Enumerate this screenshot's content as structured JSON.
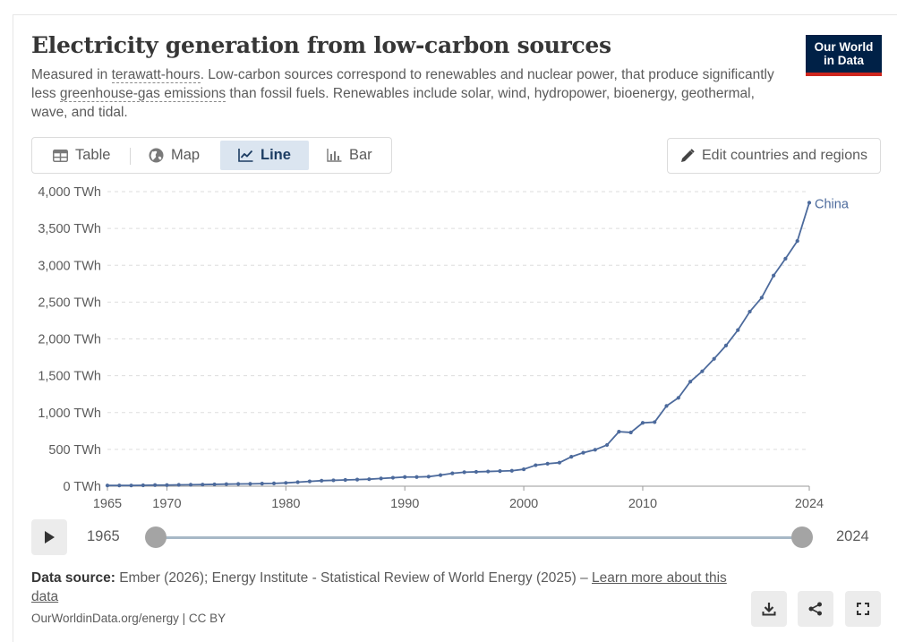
{
  "header": {
    "title": "Electricity generation from low-carbon sources",
    "subtitle_pre": "Measured in ",
    "subtitle_link1": "terawatt-hours",
    "subtitle_mid": ". Low-carbon sources correspond to renewables and nuclear power, that produce significantly less ",
    "subtitle_link2": "greenhouse-gas emissions",
    "subtitle_post": " than fossil fuels. Renewables include solar, wind, hydropower, bioenergy, geothermal, wave, and tidal.",
    "logo_line1": "Our World",
    "logo_line2": "in Data",
    "logo_bg": "#002147",
    "logo_accent": "#ce261e"
  },
  "tabs": [
    {
      "label": "Table",
      "icon": "table-icon",
      "active": false
    },
    {
      "label": "Map",
      "icon": "globe-icon",
      "active": false
    },
    {
      "label": "Line",
      "icon": "line-chart-icon",
      "active": true
    },
    {
      "label": "Bar",
      "icon": "bar-chart-icon",
      "active": false
    }
  ],
  "edit_button": {
    "label": "Edit countries and regions",
    "icon": "pencil-icon"
  },
  "chart_data": {
    "type": "line",
    "title": "Electricity generation from low-carbon sources",
    "xlabel": "",
    "ylabel": "",
    "y_unit": "TWh",
    "xlim": [
      1965,
      2024
    ],
    "ylim": [
      0,
      4000
    ],
    "y_ticks": [
      0,
      500,
      1000,
      1500,
      2000,
      2500,
      3000,
      3500,
      4000
    ],
    "y_tick_labels": [
      "0 TWh",
      "500 TWh",
      "1,000 TWh",
      "1,500 TWh",
      "2,000 TWh",
      "2,500 TWh",
      "3,000 TWh",
      "3,500 TWh",
      "4,000 TWh"
    ],
    "x_ticks": [
      1965,
      1970,
      1980,
      1990,
      2000,
      2010,
      2024
    ],
    "grid": "horizontal dashed",
    "legend": "end-of-line label",
    "series": [
      {
        "name": "China",
        "color": "#4c6a9c",
        "x": [
          1965,
          1966,
          1967,
          1968,
          1969,
          1970,
          1971,
          1972,
          1973,
          1974,
          1975,
          1976,
          1977,
          1978,
          1979,
          1980,
          1981,
          1982,
          1983,
          1984,
          1985,
          1986,
          1987,
          1988,
          1989,
          1990,
          1991,
          1992,
          1993,
          1994,
          1995,
          1996,
          1997,
          1998,
          1999,
          2000,
          2001,
          2002,
          2003,
          2004,
          2005,
          2006,
          2007,
          2008,
          2009,
          2010,
          2011,
          2012,
          2013,
          2014,
          2015,
          2016,
          2017,
          2018,
          2019,
          2020,
          2021,
          2022,
          2023,
          2024
        ],
        "y": [
          10,
          10,
          10,
          12,
          15,
          15,
          18,
          20,
          22,
          25,
          28,
          30,
          32,
          35,
          38,
          45,
          55,
          65,
          75,
          80,
          85,
          90,
          95,
          105,
          115,
          125,
          125,
          130,
          150,
          175,
          190,
          195,
          200,
          205,
          210,
          230,
          285,
          305,
          320,
          400,
          455,
          495,
          560,
          740,
          730,
          860,
          870,
          1090,
          1200,
          1420,
          1560,
          1730,
          1910,
          2120,
          2370,
          2560,
          2860,
          3090,
          3330,
          3850
        ]
      }
    ]
  },
  "timeline": {
    "start": "1965",
    "end": "2024"
  },
  "footer": {
    "source_label": "Data source:",
    "source_text": " Ember (2026); Energy Institute - Statistical Review of World Energy (2025) – ",
    "learn_more": "Learn more about this data",
    "url": "OurWorldinData.org/energy | CC BY"
  },
  "actions": [
    {
      "name": "download-button",
      "icon": "download-icon"
    },
    {
      "name": "share-button",
      "icon": "share-icon"
    },
    {
      "name": "fullscreen-button",
      "icon": "fullscreen-icon"
    }
  ]
}
